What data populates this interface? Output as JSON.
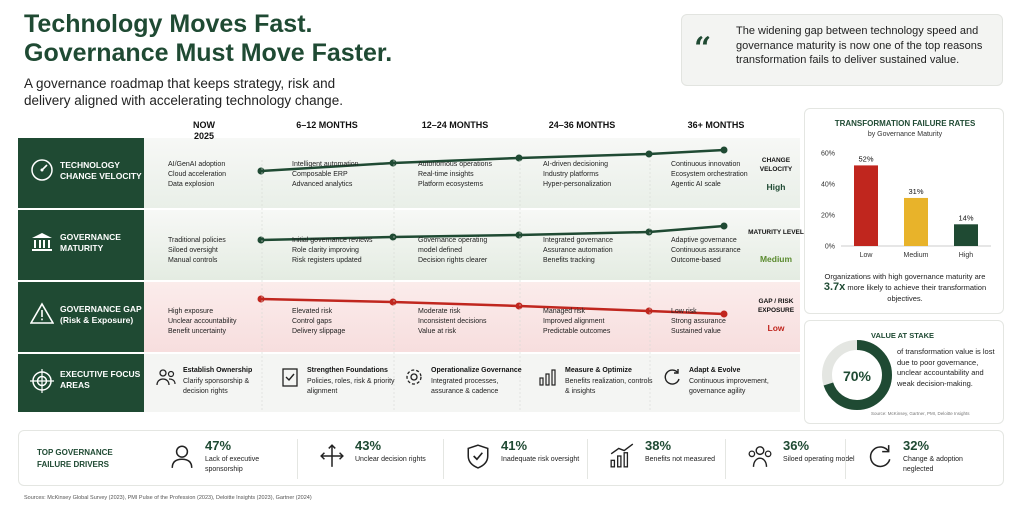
{
  "title": {
    "line1": "Technology Moves Fast.",
    "line2": "Governance Must Move Faster."
  },
  "subtitle": "A governance roadmap that keeps strategy, risk and delivery aligned with accelerating technology change.",
  "quote": "The widening gap between technology speed and governance maturity is now one of the top reasons transformation fails to deliver sustained value.",
  "phases": [
    {
      "label": "NOW",
      "sub": "2025"
    },
    {
      "label": "6–12 MONTHS",
      "sub": ""
    },
    {
      "label": "12–24 MONTHS",
      "sub": ""
    },
    {
      "label": "24–36 MONTHS",
      "sub": ""
    },
    {
      "label": "36+ MONTHS",
      "sub": ""
    }
  ],
  "rows": [
    {
      "label": "TECHNOLOGY CHANGE VELOCITY",
      "icon": "speedometer-icon",
      "cells": [
        [
          "AI/GenAI adoption",
          "Cloud acceleration",
          "Data explosion"
        ],
        [
          "Intelligent automation",
          "Composable ERP",
          "Advanced analytics"
        ],
        [
          "Autonomous operations",
          "Real-time insights",
          "Platform ecosystems"
        ],
        [
          "AI-driven decisioning",
          "Industry platforms",
          "Hyper-personalization"
        ],
        [
          "Continuous innovation",
          "Ecosystem orchestration",
          "Agentic AI scale"
        ]
      ],
      "end_label": "CHANGE VELOCITY",
      "end_value": "High",
      "end_color": "#1f4a33"
    },
    {
      "label": "GOVERNANCE MATURITY",
      "icon": "institution-icon",
      "cells": [
        [
          "Traditional policies",
          "Siloed oversight",
          "Manual controls"
        ],
        [
          "Initial governance reviews",
          "Role clarity improving",
          "Risk registers updated"
        ],
        [
          "Governance operating",
          "model defined",
          "Decision rights clearer"
        ],
        [
          "Integrated governance",
          "Assurance automation",
          "Benefits tracking"
        ],
        [
          "Adaptive governance",
          "Continuous assurance",
          "Outcome-based"
        ]
      ],
      "end_label": "MATURITY LEVEL",
      "end_value": "Medium",
      "end_color": "#5a8a2e"
    },
    {
      "label": "GOVERNANCE GAP (Risk & Exposure)",
      "icon": "warning-icon",
      "cells": [
        [
          "High exposure",
          "Unclear accountability",
          "Benefit uncertainty"
        ],
        [
          "Elevated risk",
          "Control gaps",
          "Delivery slippage"
        ],
        [
          "Moderate risk",
          "Inconsistent decisions",
          "Value at risk"
        ],
        [
          "Managed risk",
          "Improved alignment",
          "Predictable outcomes"
        ],
        [
          "Low risk",
          "Strong assurance",
          "Sustained value"
        ]
      ],
      "end_label": "GAP / RISK EXPOSURE",
      "end_value": "Low",
      "end_color": "#c0261e"
    }
  ],
  "focus": {
    "label": "EXECUTIVE FOCUS AREAS",
    "items": [
      {
        "icon": "people-icon",
        "title": "Establish Ownership",
        "desc": "Clarify sponsorship & decision rights"
      },
      {
        "icon": "checklist-icon",
        "title": "Strengthen Foundations",
        "desc": "Policies, roles, risk & priority alignment"
      },
      {
        "icon": "gear-icon",
        "title": "Operationalize Governance",
        "desc": "Integrated processes, assurance & cadence"
      },
      {
        "icon": "bar-chart-icon",
        "title": "Measure & Optimize",
        "desc": "Benefits realization, controls & insights"
      },
      {
        "icon": "cycle-icon",
        "title": "Adapt & Evolve",
        "desc": "Continuous improvement, governance agility"
      }
    ]
  },
  "rates": {
    "title": "TRANSFORMATION FAILURE RATES",
    "subtitle": "by Governance Maturity",
    "yticks": [
      "60%",
      "40%",
      "20%",
      "0%"
    ],
    "note_pre": "Organizations with high governance maturity are",
    "note_bold": "3.7x",
    "note_post": "more likely to achieve their transformation objectives."
  },
  "chart_data": {
    "type": "bar",
    "title": "TRANSFORMATION FAILURE RATES",
    "subtitle": "by Governance Maturity",
    "categories": [
      "Low",
      "Medium",
      "High"
    ],
    "values": [
      52,
      31,
      14
    ],
    "value_labels": [
      "52%",
      "31%",
      "14%"
    ],
    "colors": [
      "#c0261e",
      "#e8b32a",
      "#1f4a33"
    ],
    "ylim": [
      0,
      60
    ],
    "yticks": [
      0,
      20,
      40,
      60
    ],
    "grid": false
  },
  "stake": {
    "title": "VALUE AT STAKE",
    "value": "70%",
    "fraction": 0.7,
    "text": "of transformation value is lost due to poor governance, unclear accountability and weak decision-making.",
    "source": "Source: McKinsey, Gartner, PMI, Deloitte Insights"
  },
  "drivers": {
    "title": "TOP GOVERNANCE FAILURE DRIVERS",
    "items": [
      {
        "icon": "person-icon",
        "pct": "47%",
        "label": "Lack of executive sponsorship"
      },
      {
        "icon": "split-arrows-icon",
        "pct": "43%",
        "label": "Unclear decision rights"
      },
      {
        "icon": "shield-check-icon",
        "pct": "41%",
        "label": "Inadequate risk oversight"
      },
      {
        "icon": "growth-chart-icon",
        "pct": "38%",
        "label": "Benefits not measured"
      },
      {
        "icon": "group-icon",
        "pct": "36%",
        "label": "Siloed operating model"
      },
      {
        "icon": "refresh-icon",
        "pct": "32%",
        "label": "Change & adoption neglected"
      }
    ]
  },
  "sources": "Sources: McKinsey Global Survey (2023), PMI Pulse of the Profession (2023), Deloitte Insights (2023), Gartner (2024)"
}
